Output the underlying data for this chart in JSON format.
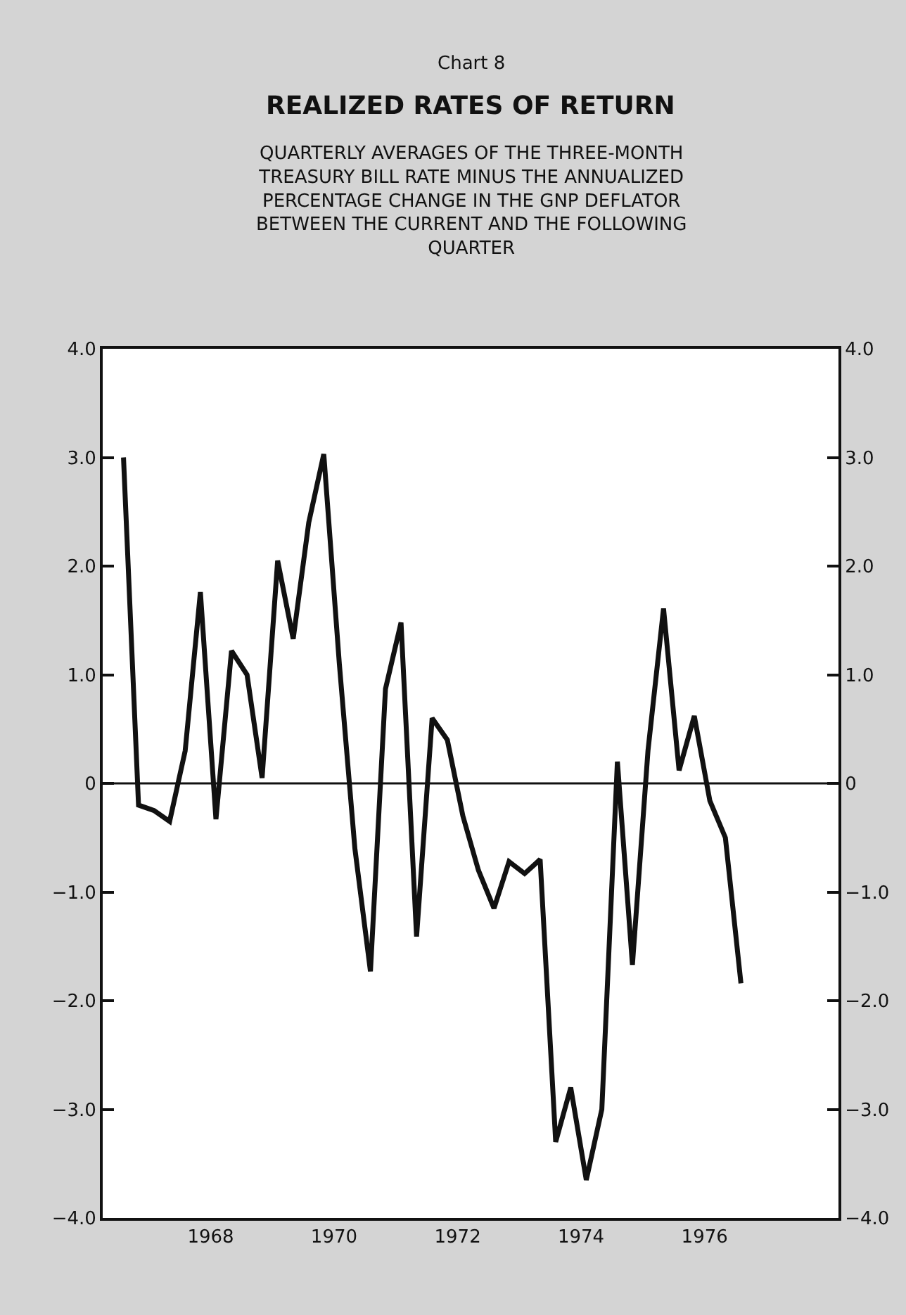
{
  "chart_data": {
    "type": "line",
    "title": "REALIZED RATES OF RETURN",
    "subtitle": "QUARTERLY AVERAGES OF THE THREE-MONTH TREASURY BILL RATE MINUS THE ANNUALIZED PERCENTAGE CHANGE IN THE GNP DEFLATOR BETWEEN THE CURRENT AND THE FOLLOWING QUARTER",
    "annotations": [
      "Chart 8"
    ],
    "x": [
      "1967-02",
      "1967-05",
      "1967-08",
      "1967-11",
      "1968-02",
      "1968-05",
      "1968-08",
      "1968-11",
      "1969-02",
      "1969-05",
      "1969-08",
      "1969-11",
      "1970-02",
      "1970-05",
      "1970-08",
      "1970-11",
      "1971-02",
      "1971-05",
      "1971-08",
      "1971-11",
      "1972-02",
      "1972-05",
      "1972-08",
      "1972-11",
      "1973-02",
      "1973-05",
      "1973-08",
      "1973-11",
      "1974-02",
      "1974-05",
      "1974-08",
      "1974-11",
      "1975-02",
      "1975-05",
      "1975-08",
      "1975-11",
      "1976-02",
      "1976-05",
      "1976-08",
      "1976-11",
      "1977-02"
    ],
    "series": [
      {
        "color": "#111111",
        "values": [
          3.0,
          -0.2,
          -0.25,
          -0.35,
          0.3,
          1.76,
          -0.33,
          1.22,
          1.0,
          0.05,
          2.05,
          1.33,
          2.4,
          3.03,
          1.1,
          -0.6,
          -1.73,
          0.87,
          1.48,
          -1.41,
          0.6,
          0.4,
          -0.3,
          -0.8,
          -1.15,
          -0.72,
          -0.83,
          -0.7,
          -3.3,
          -2.8,
          -3.65,
          -3.0,
          0.2,
          -1.67,
          0.3,
          1.61,
          0.12,
          0.62,
          -0.16,
          -0.5,
          -1.84
        ]
      }
    ],
    "xlim": [
      "1966-10",
      "1978-09"
    ],
    "xticks": [
      {
        "value": "1968-07",
        "label": "1968"
      },
      {
        "value": "1970-07",
        "label": "1970"
      },
      {
        "value": "1972-07",
        "label": "1972"
      },
      {
        "value": "1974-07",
        "label": "1974"
      },
      {
        "value": "1976-07",
        "label": "1976"
      }
    ],
    "ylim": [
      -4,
      4
    ],
    "yticks": [
      {
        "value": -4,
        "label": "−4.0"
      },
      {
        "value": -3,
        "label": "−3.0"
      },
      {
        "value": -2,
        "label": "−2.0"
      },
      {
        "value": -1,
        "label": "−1.0"
      },
      0,
      {
        "value": 1,
        "label": "1.0"
      },
      {
        "value": 2,
        "label": "2.0"
      },
      {
        "value": 3,
        "label": "3.0"
      },
      {
        "value": 4,
        "label": "4.0"
      }
    ],
    "y2lim": [
      -4,
      4
    ],
    "y2ticks": [
      {
        "value": -4,
        "label": "−4.0"
      },
      {
        "value": -3,
        "label": "−3.0"
      },
      {
        "value": -2,
        "label": "−2.0"
      },
      {
        "value": -1,
        "label": "−1.0"
      },
      0,
      {
        "value": 1,
        "label": "1.0"
      },
      {
        "value": 2,
        "label": "2.0"
      },
      {
        "value": 3,
        "label": "3.0"
      },
      {
        "value": 4,
        "label": "4.0"
      }
    ],
    "ref_lines": [
      {
        "axis": "y",
        "value": 0,
        "color": "#111111"
      }
    ],
    "marker": "none",
    "line_style": "solid"
  }
}
